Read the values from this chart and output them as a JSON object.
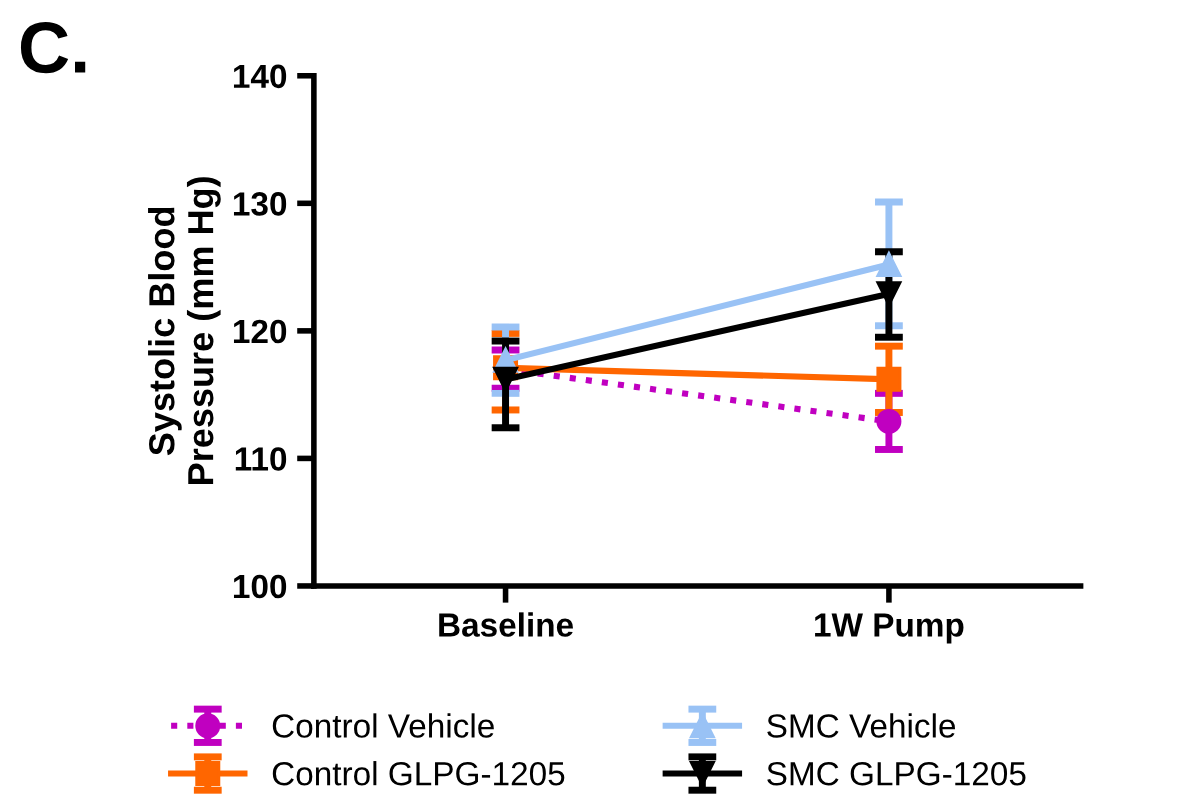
{
  "chart_data": {
    "type": "line",
    "ylabel": "Systolic Blood\nPressure (mm Hg)",
    "annotations": [
      "C."
    ],
    "categories": [
      "Baseline",
      "1W Pump"
    ],
    "ylim": [
      100,
      140
    ],
    "yticks": [
      100,
      110,
      120,
      130,
      140
    ],
    "grid": false,
    "legend": "bottom",
    "series": [
      {
        "name": "Control Vehicle",
        "color": "#c000c0",
        "values": [
          117.0,
          112.9
        ],
        "errors": [
          1.5,
          2.2
        ],
        "marker": "circle",
        "line_style": "dotted"
      },
      {
        "name": "Control GLPG-1205",
        "color": "#ff6600",
        "values": [
          117.1,
          116.2
        ],
        "errors": [
          [
            113.8,
            119.8
          ],
          [
            113.6,
            118.8
          ]
        ],
        "marker": "square",
        "line_style": "solid"
      },
      {
        "name": "SMC Vehicle",
        "color": "#99c2f5",
        "values": [
          117.7,
          125.2
        ],
        "errors": [
          [
            115.1,
            120.3
          ],
          [
            120.4,
            130.1
          ]
        ],
        "marker": "triangle",
        "line_style": "solid"
      },
      {
        "name": "SMC GLPG-1205",
        "color": "#000000",
        "values": [
          116.2,
          122.9
        ],
        "errors": [
          [
            112.4,
            119.2
          ],
          [
            119.5,
            126.2
          ]
        ],
        "marker": "triangle_down",
        "line_style": "solid"
      }
    ]
  }
}
